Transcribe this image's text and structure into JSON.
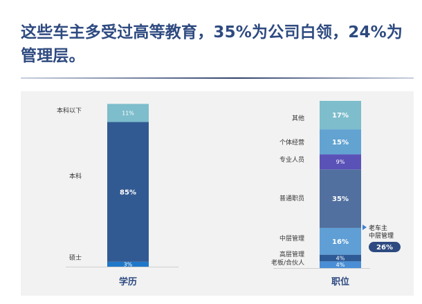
{
  "headline": "这些车主多受过高等教育，35%为公司白领，24%为管理层。",
  "chart_data": [
    {
      "type": "bar",
      "stacked": true,
      "title": "",
      "xlabel": "学历",
      "ylabel": "",
      "ylim": [
        0,
        100
      ],
      "categories": [
        "学历"
      ],
      "series": [
        {
          "name": "硕士",
          "values": [
            3
          ],
          "label": "3%",
          "color": "#1f77c8"
        },
        {
          "name": "本科",
          "values": [
            85
          ],
          "label": "85%",
          "color": "#325a92"
        },
        {
          "name": "本科以下",
          "values": [
            11
          ],
          "label": "11%",
          "color": "#7dbdcc"
        }
      ]
    },
    {
      "type": "bar",
      "stacked": true,
      "title": "",
      "xlabel": "职位",
      "ylabel": "",
      "ylim": [
        0,
        100
      ],
      "categories": [
        "职位"
      ],
      "series": [
        {
          "name": "老板/合伙人",
          "values": [
            4
          ],
          "label": "4%",
          "color": "#4a8fd6"
        },
        {
          "name": "高层管理",
          "values": [
            4
          ],
          "label": "4%",
          "color": "#2e5a96"
        },
        {
          "name": "中层管理",
          "values": [
            16
          ],
          "label": "16%",
          "color": "#5f9fd6"
        },
        {
          "name": "普通职员",
          "values": [
            35
          ],
          "label": "35%",
          "color": "#51709f"
        },
        {
          "name": "专业人员",
          "values": [
            9
          ],
          "label": "9%",
          "color": "#5b52b8"
        },
        {
          "name": "个体经营",
          "values": [
            15
          ],
          "label": "15%",
          "color": "#62a3d2"
        },
        {
          "name": "其他",
          "values": [
            17
          ],
          "label": "17%",
          "color": "#7dbdcc"
        }
      ],
      "annotation": {
        "label_line1": "老车主",
        "label_line2": "中层管理",
        "value": "26%",
        "badge_color": "#2e4a80"
      }
    }
  ]
}
